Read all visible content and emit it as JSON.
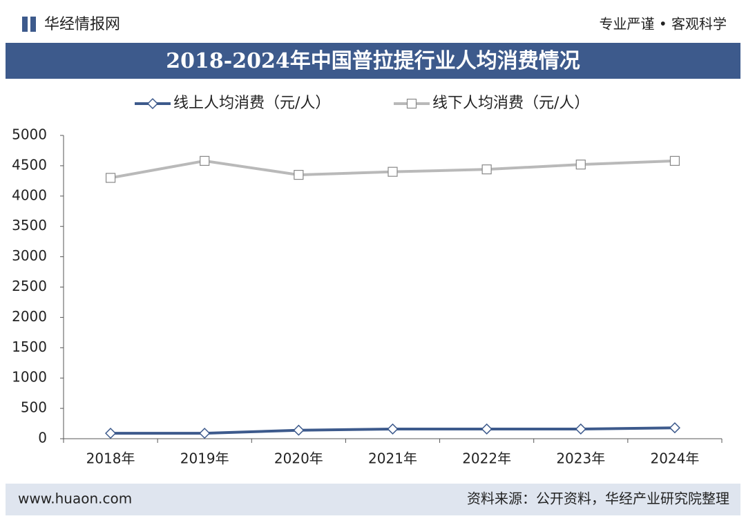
{
  "header": {
    "brand": "华经情报网",
    "slogan": "专业严谨 • 客观科学"
  },
  "chart_data": {
    "type": "line",
    "title": "2018-2024年中国普拉提行业人均消费情况",
    "categories": [
      "2018年",
      "2019年",
      "2020年",
      "2021年",
      "2022年",
      "2023年",
      "2024年"
    ],
    "series": [
      {
        "name": "线上人均消费（元/人）",
        "color": "#3d5a8c",
        "marker": "diamond",
        "values": [
          90,
          90,
          140,
          160,
          160,
          160,
          180
        ]
      },
      {
        "name": "线下人均消费（元/人）",
        "color": "#b9b9b9",
        "marker": "square",
        "values": [
          4300,
          4580,
          4350,
          4400,
          4440,
          4520,
          4580
        ]
      }
    ],
    "ylim": [
      0,
      5000
    ],
    "yticks": [
      0,
      500,
      1000,
      1500,
      2000,
      2500,
      3000,
      3500,
      4000,
      4500,
      5000
    ],
    "grid": false,
    "legend": "top"
  },
  "footer": {
    "website": "www.huaon.com",
    "source": "资料来源：公开资料，华经产业研究院整理"
  }
}
